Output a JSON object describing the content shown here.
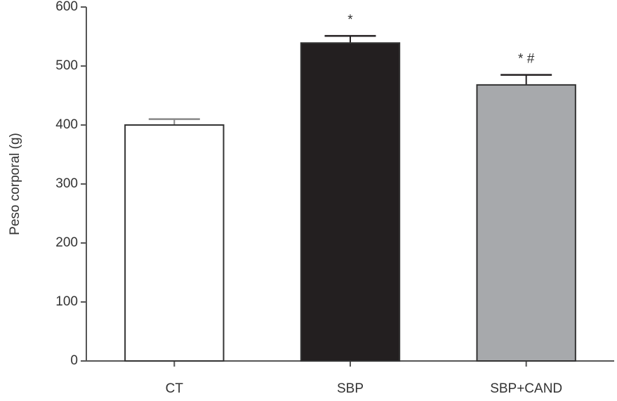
{
  "chart_data": {
    "type": "bar",
    "ylabel": "Peso corporal (g)",
    "categories": [
      "CT",
      "SBP",
      "SBP+CAND"
    ],
    "values": [
      400,
      539,
      468
    ],
    "errors": [
      10,
      12,
      17
    ],
    "colors": [
      "#ffffff",
      "#231f20",
      "#a7a9ac"
    ],
    "ylim": [
      0,
      600
    ],
    "yticks": [
      0,
      100,
      200,
      300,
      400,
      500,
      600
    ],
    "annotations": [
      {
        "category": "SBP",
        "text": "*"
      },
      {
        "category": "SBP+CAND",
        "text": "* #"
      }
    ]
  }
}
